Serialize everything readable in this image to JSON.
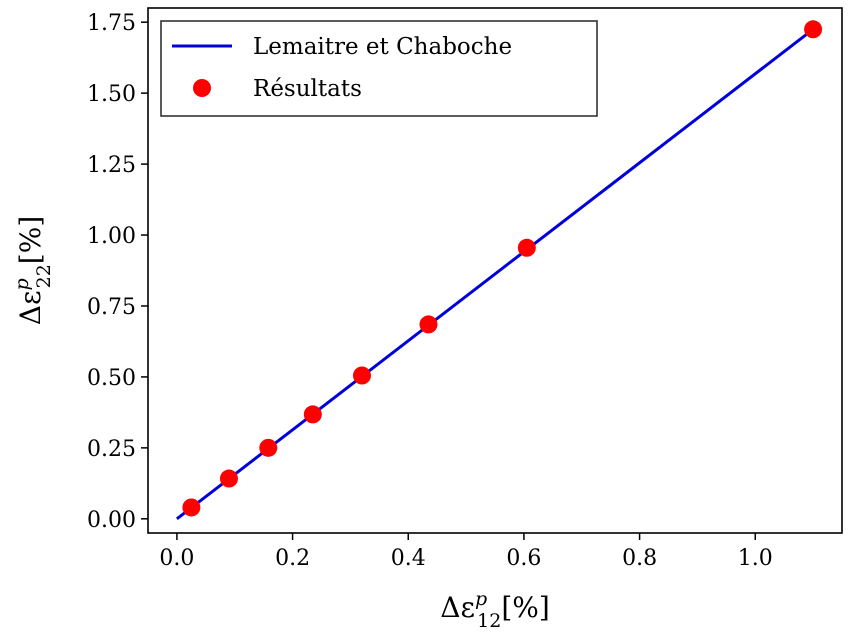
{
  "chart_data": {
    "type": "line",
    "xlabel": {
      "base": "Δε",
      "sup": "p",
      "sub": "12",
      "unit": "[%]"
    },
    "ylabel": {
      "base": "Δε",
      "sup": "p",
      "sub": "22",
      "unit": "[%]"
    },
    "xlim": [
      -0.05,
      1.15
    ],
    "ylim": [
      -0.05,
      1.8
    ],
    "xticks": [
      "0.0",
      "0.2",
      "0.4",
      "0.6",
      "0.8",
      "1.0"
    ],
    "yticks": [
      "0.00",
      "0.25",
      "0.50",
      "0.75",
      "1.00",
      "1.25",
      "1.50",
      "1.75"
    ],
    "legend_position": "upper-left",
    "series": [
      {
        "name": "Lemaitre et Chaboche",
        "kind": "line",
        "color": "#0000dd",
        "x": [
          0.0,
          1.1
        ],
        "y": [
          0.0,
          1.725
        ]
      },
      {
        "name": "Résultats",
        "kind": "scatter",
        "color": "#ff0000",
        "x": [
          0.025,
          0.09,
          0.158,
          0.235,
          0.32,
          0.435,
          0.605,
          1.1
        ],
        "y": [
          0.04,
          0.142,
          0.25,
          0.368,
          0.505,
          0.685,
          0.955,
          1.725
        ]
      }
    ]
  }
}
